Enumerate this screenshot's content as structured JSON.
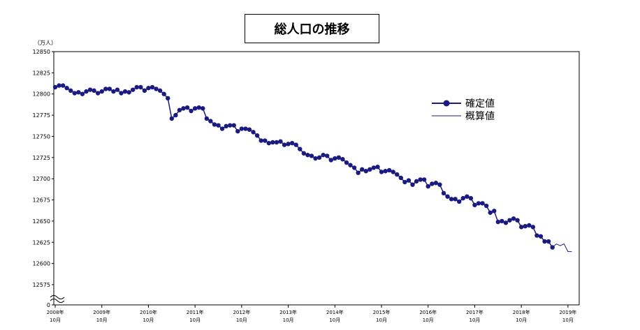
{
  "chart_data": {
    "type": "line",
    "title": "総人口の推移",
    "y_unit": "（万人）",
    "xlabel": "",
    "ylabel": "",
    "ylim": [
      12575,
      12850
    ],
    "y_break": true,
    "y_ticks": [
      0,
      12575,
      12600,
      12625,
      12650,
      12675,
      12700,
      12725,
      12750,
      12775,
      12800,
      12825,
      12850
    ],
    "x_ticks": [
      {
        "year": "2008年",
        "month": "10月"
      },
      {
        "year": "2009年",
        "month": "10月"
      },
      {
        "year": "2010年",
        "month": "10月"
      },
      {
        "year": "2011年",
        "month": "10月"
      },
      {
        "year": "2012年",
        "month": "10月"
      },
      {
        "year": "2013年",
        "month": "10月"
      },
      {
        "year": "2014年",
        "month": "10月"
      },
      {
        "year": "2015年",
        "month": "10月"
      },
      {
        "year": "2016年",
        "month": "10月"
      },
      {
        "year": "2017年",
        "month": "10月"
      },
      {
        "year": "2018年",
        "month": "10月"
      },
      {
        "year": "2019年",
        "month": "10月"
      }
    ],
    "x_start": "2008-10",
    "grid": false,
    "legend_position": "top-right",
    "series": [
      {
        "name": "確定値",
        "color": "#1a1a80",
        "marker": "circle",
        "values": [
          12808,
          12810,
          12810,
          12807,
          12804,
          12801,
          12802,
          12800,
          12803,
          12805,
          12804,
          12801,
          12803,
          12806,
          12806,
          12803,
          12805,
          12801,
          12803,
          12802,
          12805,
          12808,
          12808,
          12804,
          12807,
          12808,
          12806,
          12804,
          12800,
          12795,
          12771,
          12775,
          12781,
          12783,
          12784,
          12780,
          12783,
          12784,
          12783,
          12771,
          12768,
          12764,
          12763,
          12759,
          12762,
          12763,
          12763,
          12756,
          12759,
          12759,
          12758,
          12755,
          12751,
          12745,
          12745,
          12742,
          12743,
          12743,
          12744,
          12740,
          12741,
          12742,
          12740,
          12735,
          12730,
          12728,
          12727,
          12724,
          12725,
          12728,
          12727,
          12722,
          12724,
          12725,
          12723,
          12719,
          12716,
          12713,
          12707,
          12711,
          12709,
          12711,
          12713,
          12714,
          12708,
          12709,
          12710,
          12708,
          12705,
          12701,
          12696,
          12698,
          12693,
          12697,
          12699,
          12699,
          12691,
          12694,
          12695,
          12693,
          12683,
          12679,
          12676,
          12676,
          12673,
          12677,
          12679,
          12677,
          12669,
          12671,
          12671,
          12668,
          12660,
          12662,
          12649,
          12650,
          12648,
          12651,
          12653,
          12651,
          12643,
          12644,
          12645,
          12643,
          12633,
          12632,
          12626,
          12626,
          12619
        ]
      },
      {
        "name": "概算値",
        "color": "#1a1a80",
        "marker": "none",
        "start_index": 128,
        "values": [
          12619,
          12623,
          12621,
          12623,
          12614,
          12614
        ]
      }
    ]
  }
}
